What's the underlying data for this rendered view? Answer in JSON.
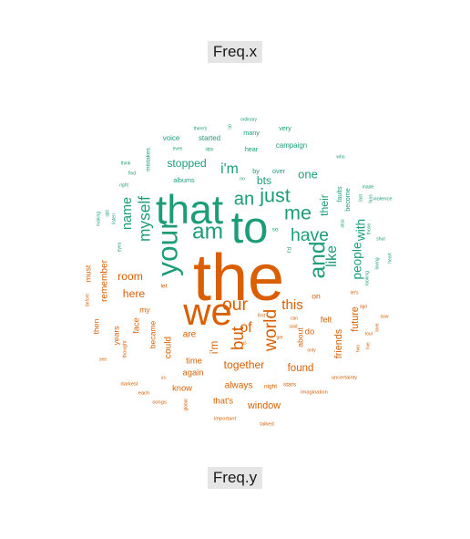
{
  "labels": {
    "top": "Freq.x",
    "bottom": "Freq.y"
  },
  "colors": {
    "x_group": "#1b9e77",
    "y_group": "#d95f02",
    "label_bg": "#e5e5e5"
  },
  "chart_data": {
    "type": "comparison-wordcloud",
    "groups": [
      "Freq.x",
      "Freq.y"
    ],
    "words": [
      {
        "word": "the",
        "group": "Freq.y",
        "weight": 100
      },
      {
        "word": "to",
        "group": "Freq.x",
        "weight": 68
      },
      {
        "word": "that",
        "group": "Freq.x",
        "weight": 62
      },
      {
        "word": "we",
        "group": "Freq.y",
        "weight": 58
      },
      {
        "word": "your",
        "group": "Freq.x",
        "weight": 44
      },
      {
        "word": "am",
        "group": "Freq.x",
        "weight": 34
      },
      {
        "word": "and",
        "group": "Freq.x",
        "weight": 34
      },
      {
        "word": "me",
        "group": "Freq.x",
        "weight": 30
      },
      {
        "word": "just",
        "group": "Freq.x",
        "weight": 30
      },
      {
        "word": "an",
        "group": "Freq.x",
        "weight": 28
      },
      {
        "word": "have",
        "group": "Freq.x",
        "weight": 27
      },
      {
        "word": "our",
        "group": "Freq.y",
        "weight": 27
      },
      {
        "word": "world",
        "group": "Freq.y",
        "weight": 27
      },
      {
        "word": "but",
        "group": "Freq.y",
        "weight": 26
      },
      {
        "word": "myself",
        "group": "Freq.x",
        "weight": 24
      },
      {
        "word": "i'm",
        "group": "Freq.x",
        "weight": 22
      },
      {
        "word": "like",
        "group": "Freq.x",
        "weight": 22
      },
      {
        "word": "of",
        "group": "Freq.y",
        "weight": 22
      },
      {
        "word": "this",
        "group": "Freq.y",
        "weight": 21
      },
      {
        "word": "name",
        "group": "Freq.x",
        "weight": 20
      },
      {
        "word": "people",
        "group": "Freq.x",
        "weight": 19
      },
      {
        "word": "with",
        "group": "Freq.x",
        "weight": 19
      },
      {
        "word": "one",
        "group": "Freq.x",
        "weight": 18
      },
      {
        "word": "stopped",
        "group": "Freq.x",
        "weight": 17
      },
      {
        "word": "bts",
        "group": "Freq.x",
        "weight": 17
      },
      {
        "word": "their",
        "group": "Freq.x",
        "weight": 17
      },
      {
        "word": "room",
        "group": "Freq.y",
        "weight": 17
      },
      {
        "word": "here",
        "group": "Freq.y",
        "weight": 17
      },
      {
        "word": "together",
        "group": "Freq.y",
        "weight": 17
      },
      {
        "word": "i'm",
        "group": "Freq.y",
        "weight": 16
      },
      {
        "word": "found",
        "group": "Freq.y",
        "weight": 16
      },
      {
        "word": "friends",
        "group": "Freq.y",
        "weight": 15
      },
      {
        "word": "window",
        "group": "Freq.y",
        "weight": 15
      },
      {
        "word": "future",
        "group": "Freq.y",
        "weight": 15
      },
      {
        "word": "always",
        "group": "Freq.y",
        "weight": 14
      },
      {
        "word": "remember",
        "group": "Freq.y",
        "weight": 14
      },
      {
        "word": "could",
        "group": "Freq.y",
        "weight": 14
      },
      {
        "word": "are",
        "group": "Freq.y",
        "weight": 14
      },
      {
        "word": "again",
        "group": "Freq.y",
        "weight": 13
      },
      {
        "word": "felt",
        "group": "Freq.y",
        "weight": 13
      },
      {
        "word": "do",
        "group": "Freq.y",
        "weight": 13
      },
      {
        "word": "face",
        "group": "Freq.y",
        "weight": 13
      },
      {
        "word": "time",
        "group": "Freq.y",
        "weight": 13
      },
      {
        "word": "know",
        "group": "Freq.y",
        "weight": 13
      },
      {
        "word": "that's",
        "group": "Freq.y",
        "weight": 13
      },
      {
        "word": "about",
        "group": "Freq.y",
        "weight": 12
      },
      {
        "word": "must",
        "group": "Freq.y",
        "weight": 12
      },
      {
        "word": "became",
        "group": "Freq.y",
        "weight": 12
      },
      {
        "word": "years",
        "group": "Freq.y",
        "weight": 12
      },
      {
        "word": "then",
        "group": "Freq.y",
        "weight": 12
      },
      {
        "word": "my",
        "group": "Freq.y",
        "weight": 12
      },
      {
        "word": "on",
        "group": "Freq.y",
        "weight": 12
      },
      {
        "word": "campaign",
        "group": "Freq.x",
        "weight": 11
      },
      {
        "word": "started",
        "group": "Freq.x",
        "weight": 11
      },
      {
        "word": "voice",
        "group": "Freq.x",
        "weight": 11
      },
      {
        "word": "albums",
        "group": "Freq.x",
        "weight": 10
      },
      {
        "word": "many",
        "group": "Freq.x",
        "weight": 10
      },
      {
        "word": "very",
        "group": "Freq.x",
        "weight": 10
      },
      {
        "word": "hear",
        "group": "Freq.x",
        "weight": 10
      },
      {
        "word": "over",
        "group": "Freq.x",
        "weight": 10
      },
      {
        "word": "by",
        "group": "Freq.x",
        "weight": 10
      },
      {
        "word": "faults",
        "group": "Freq.x",
        "weight": 10
      },
      {
        "word": "become",
        "group": "Freq.x",
        "weight": 10
      },
      {
        "word": "mistakes",
        "group": "Freq.x",
        "weight": 9
      },
      {
        "word": "so",
        "group": "Freq.x",
        "weight": 9
      },
      {
        "word": "i'd",
        "group": "Freq.x",
        "weight": 9
      },
      {
        "word": "let",
        "group": "Freq.y",
        "weight": 9
      },
      {
        "word": "stars",
        "group": "Freq.y",
        "weight": 9
      },
      {
        "word": "night",
        "group": "Freq.y",
        "weight": 9
      },
      {
        "word": "uncertainty",
        "group": "Freq.y",
        "weight": 8
      },
      {
        "word": "darkest",
        "group": "Freq.y",
        "weight": 8
      },
      {
        "word": "talked",
        "group": "Freq.y",
        "weight": 8
      },
      {
        "word": "each",
        "group": "Freq.y",
        "weight": 8
      },
      {
        "word": "imagination",
        "group": "Freq.y",
        "weight": 8
      },
      {
        "word": "important",
        "group": "Freq.y",
        "weight": 8
      },
      {
        "word": "thought",
        "group": "Freq.y",
        "weight": 8
      },
      {
        "word": "songs",
        "group": "Freq.y",
        "weight": 8
      },
      {
        "word": "us.",
        "group": "Freq.y",
        "weight": 7
      },
      {
        "word": "global",
        "group": "Freq.y",
        "weight": 7
      },
      {
        "word": "only",
        "group": "Freq.y",
        "weight": 7
      },
      {
        "word": "before",
        "group": "Freq.y",
        "weight": 7
      },
      {
        "word": "saw",
        "group": "Freq.y",
        "weight": 7
      },
      {
        "word": "tour",
        "group": "Freq.y",
        "weight": 7
      },
      {
        "word": "ago",
        "group": "Freq.y",
        "weight": 7
      },
      {
        "word": "two",
        "group": "Freq.y",
        "weight": 7
      },
      {
        "word": "live",
        "group": "Freq.y",
        "weight": 7
      },
      {
        "word": "can",
        "group": "Freq.y",
        "weight": 7
      },
      {
        "word": "said",
        "group": "Freq.y",
        "weight": 7
      },
      {
        "word": "see",
        "group": "Freq.y",
        "weight": 7
      },
      {
        "word": "us",
        "group": "Freq.y",
        "weight": 6
      },
      {
        "word": "get",
        "group": "Freq.y",
        "weight": 6
      },
      {
        "word": "first",
        "group": "Freq.y",
        "weight": 6
      },
      {
        "word": "love",
        "group": "Freq.y",
        "weight": 7
      },
      {
        "word": "violence",
        "group": "Freq.x",
        "weight": 8
      },
      {
        "word": "made",
        "group": "Freq.x",
        "weight": 7
      },
      {
        "word": "who",
        "group": "Freq.x",
        "weight": 7
      },
      {
        "word": "last",
        "group": "Freq.x",
        "weight": 7
      },
      {
        "word": "fans",
        "group": "Freq.x",
        "weight": 7
      },
      {
        "word": "shut",
        "group": "Freq.x",
        "weight": 7
      },
      {
        "word": "those",
        "group": "Freq.x",
        "weight": 7
      },
      {
        "word": "heart",
        "group": "Freq.x",
        "weight": 6
      },
      {
        "word": "loving",
        "group": "Freq.x",
        "weight": 7
      },
      {
        "word": "looking",
        "group": "Freq.x",
        "weight": 7
      },
      {
        "word": "also",
        "group": "Freq.x",
        "weight": 7
      },
      {
        "word": "think",
        "group": "Freq.x",
        "weight": 7
      },
      {
        "word": "find",
        "group": "Freq.x",
        "weight": 7
      },
      {
        "word": "right",
        "group": "Freq.x",
        "weight": 6
      },
      {
        "word": "making",
        "group": "Freq.x",
        "weight": 7
      },
      {
        "word": "still",
        "group": "Freq.x",
        "weight": 6
      },
      {
        "word": "listen",
        "group": "Freq.x",
        "weight": 6
      },
      {
        "word": "eyes",
        "group": "Freq.x",
        "weight": 6
      },
      {
        "word": "little",
        "group": "Freq.x",
        "weight": 6
      },
      {
        "word": "even",
        "group": "Freq.x",
        "weight": 6
      },
      {
        "word": "there's",
        "group": "Freq.x",
        "weight": 6
      },
      {
        "word": "up",
        "group": "Freq.x",
        "weight": 6
      },
      {
        "word": "ordinary",
        "group": "Freq.x",
        "weight": 6
      },
      {
        "word": "no",
        "group": "Freq.x",
        "weight": 6
      },
      {
        "word": "let's",
        "group": "Freq.y",
        "weight": 6
      }
    ]
  }
}
